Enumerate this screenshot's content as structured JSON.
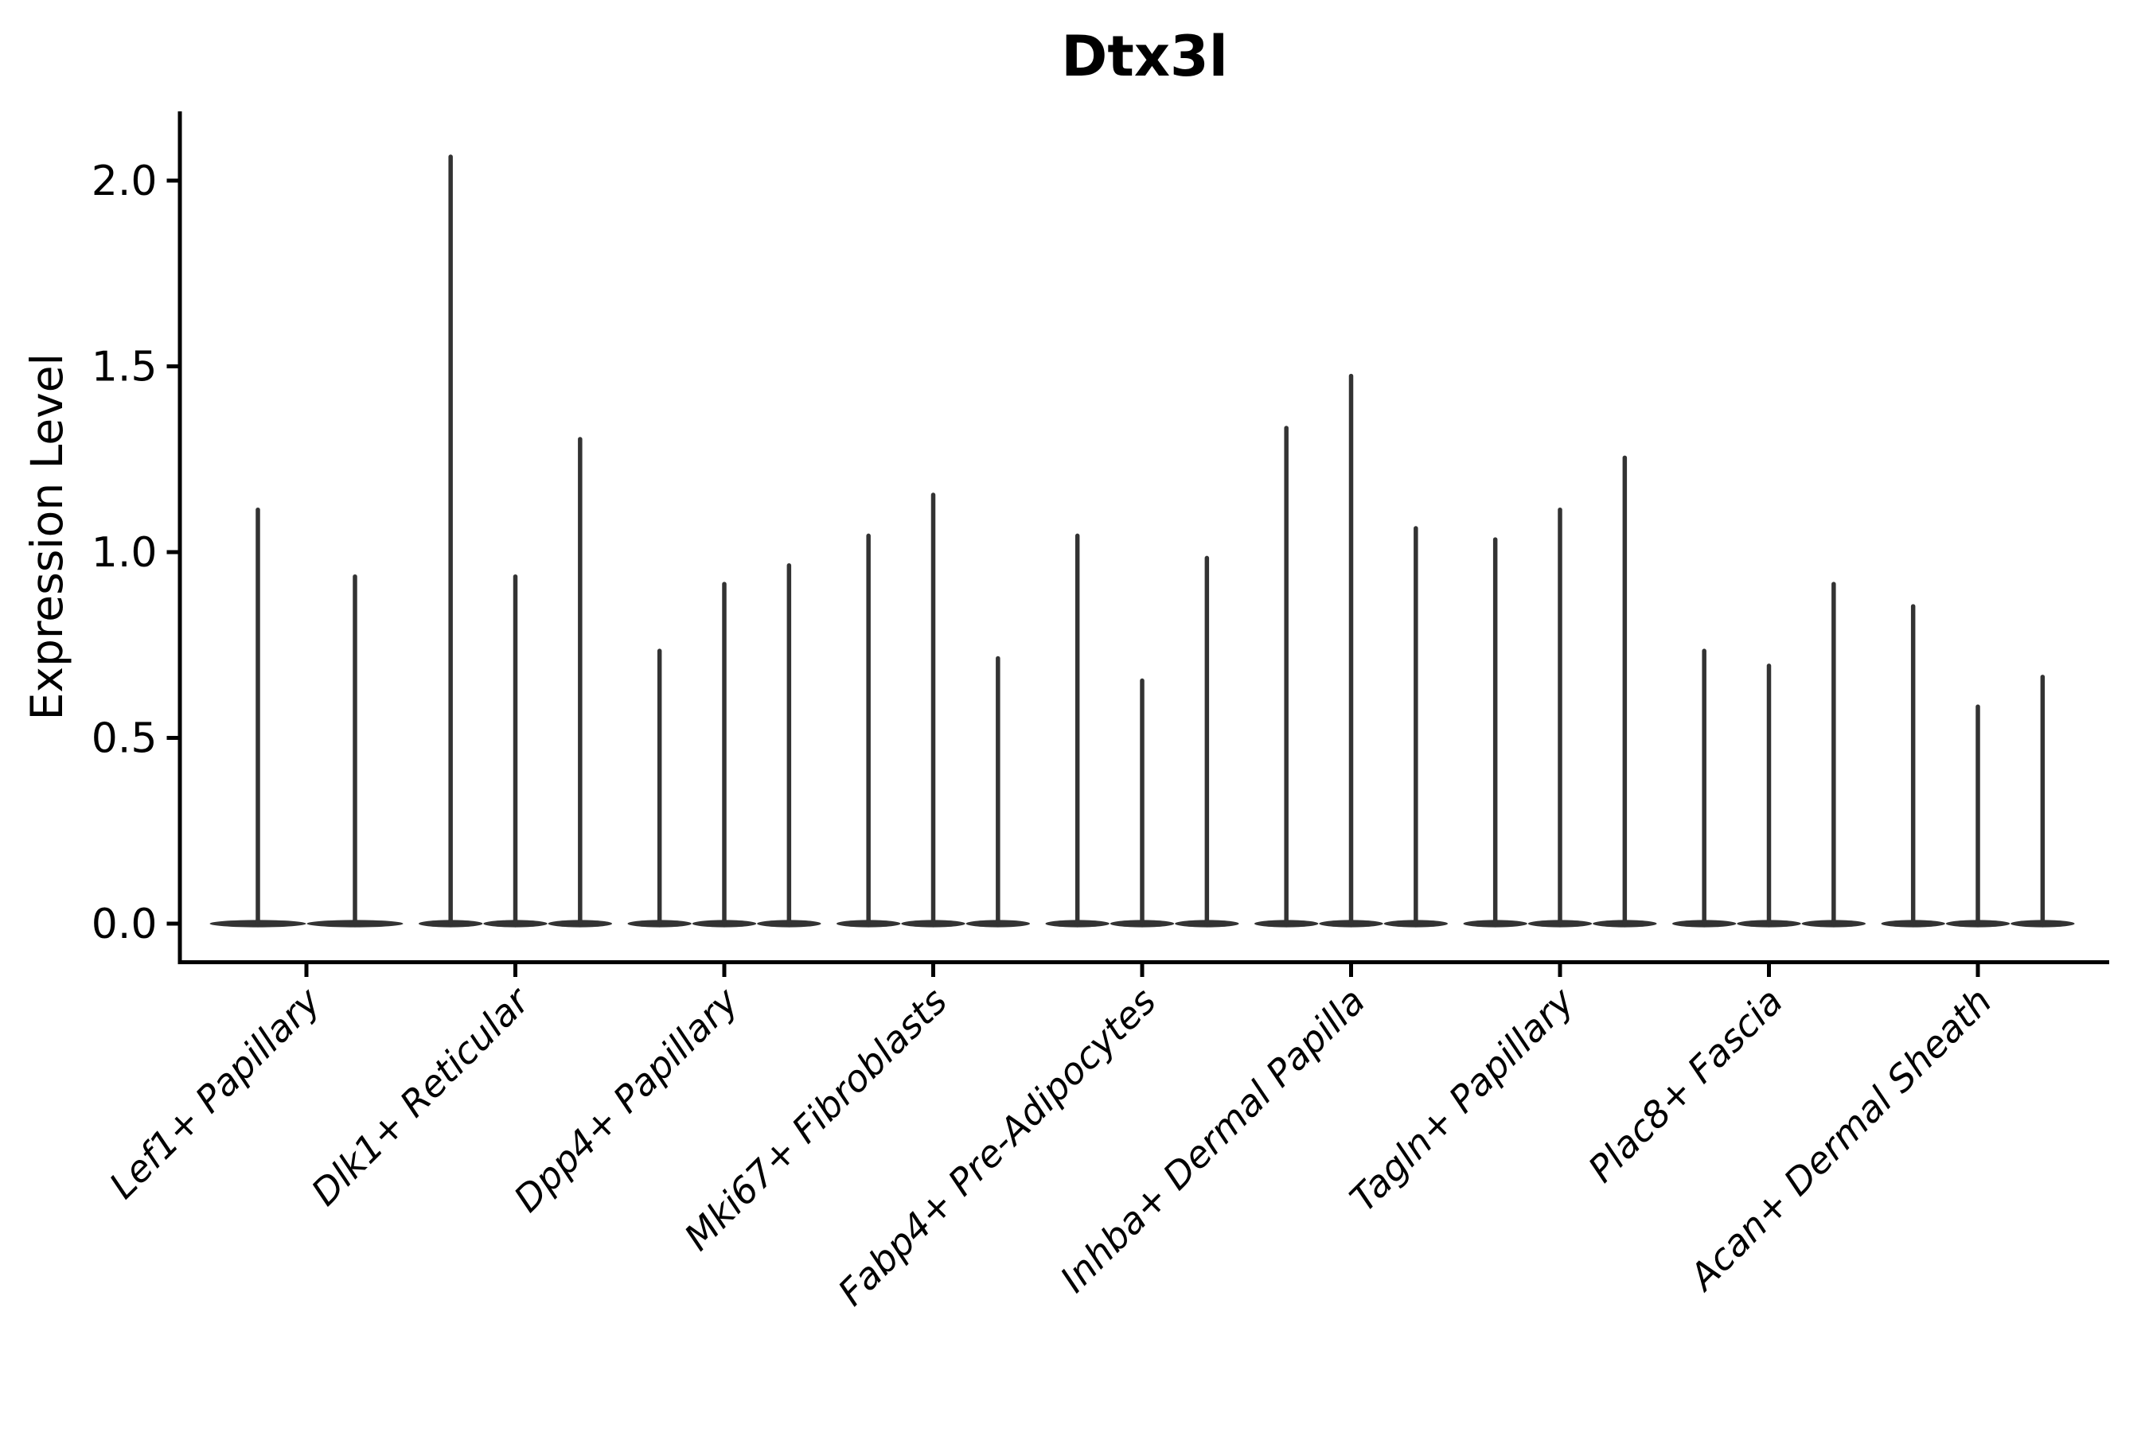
{
  "title": "Dtx3l",
  "ylabel": "Expression Level",
  "colors": {
    "violin": "#333333",
    "axis": "#000000",
    "text": "#000000",
    "background": "#ffffff"
  },
  "chart_data": {
    "type": "violin",
    "title": "Dtx3l",
    "xlabel": "",
    "ylabel": "Expression Level",
    "ylim": [
      0,
      2.15
    ],
    "yticks": [
      0.0,
      0.5,
      1.0,
      1.5,
      2.0
    ],
    "ytick_labels": [
      "0.0",
      "0.5",
      "1.0",
      "1.5",
      "2.0"
    ],
    "grid": false,
    "legend": "none",
    "description": "Needle-thin violin plot of Dtx3l expression; each category shows 2-3 sharp spikes rising from a flat base at 0, spike tops give max expression level",
    "categories": [
      "Lef1+ Papillary",
      "Dlk1+ Reticular",
      "Dpp4+ Papillary",
      "Mki67+ Fibroblasts",
      "Fabp4+ Pre-Adipocytes",
      "Inhba+ Dermal Papilla",
      "Tagln+ Papillary",
      "Plac8+ Fascia",
      "Acan+ Dermal Sheath"
    ],
    "groups": [
      {
        "category": "Lef1+ Papillary",
        "spike_max_values": [
          1.12,
          0.94
        ]
      },
      {
        "category": "Dlk1+ Reticular",
        "spike_max_values": [
          2.07,
          0.94,
          1.31
        ]
      },
      {
        "category": "Dpp4+ Papillary",
        "spike_max_values": [
          0.74,
          0.92,
          0.97
        ]
      },
      {
        "category": "Mki67+ Fibroblasts",
        "spike_max_values": [
          1.05,
          1.16,
          0.72
        ]
      },
      {
        "category": "Fabp4+ Pre-Adipocytes",
        "spike_max_values": [
          1.05,
          0.66,
          0.99
        ]
      },
      {
        "category": "Inhba+ Dermal Papilla",
        "spike_max_values": [
          1.34,
          1.48,
          1.07
        ]
      },
      {
        "category": "Tagln+ Papillary",
        "spike_max_values": [
          1.04,
          1.12,
          1.26
        ]
      },
      {
        "category": "Plac8+ Fascia",
        "spike_max_values": [
          0.74,
          0.7,
          0.92
        ]
      },
      {
        "category": "Acan+ Dermal Sheath",
        "spike_max_values": [
          0.86,
          0.59,
          0.67
        ]
      }
    ]
  }
}
